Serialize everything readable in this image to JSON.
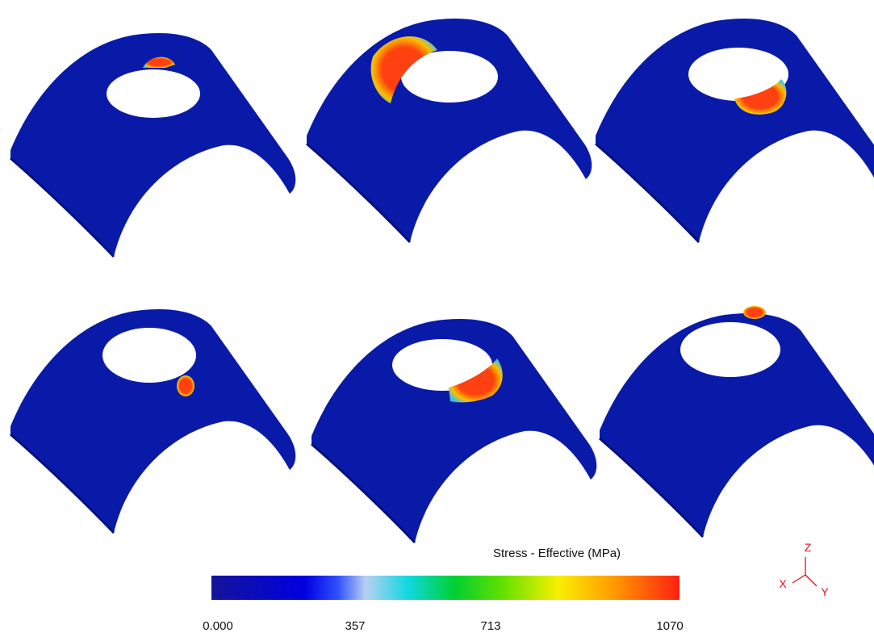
{
  "colorbar": {
    "title": "Stress - Effective (MPa)",
    "tick_labels": [
      "0.000",
      "357",
      "713",
      "1070"
    ]
  },
  "axes_triad": {
    "z": "Z",
    "x": "X",
    "y": "Y"
  }
}
